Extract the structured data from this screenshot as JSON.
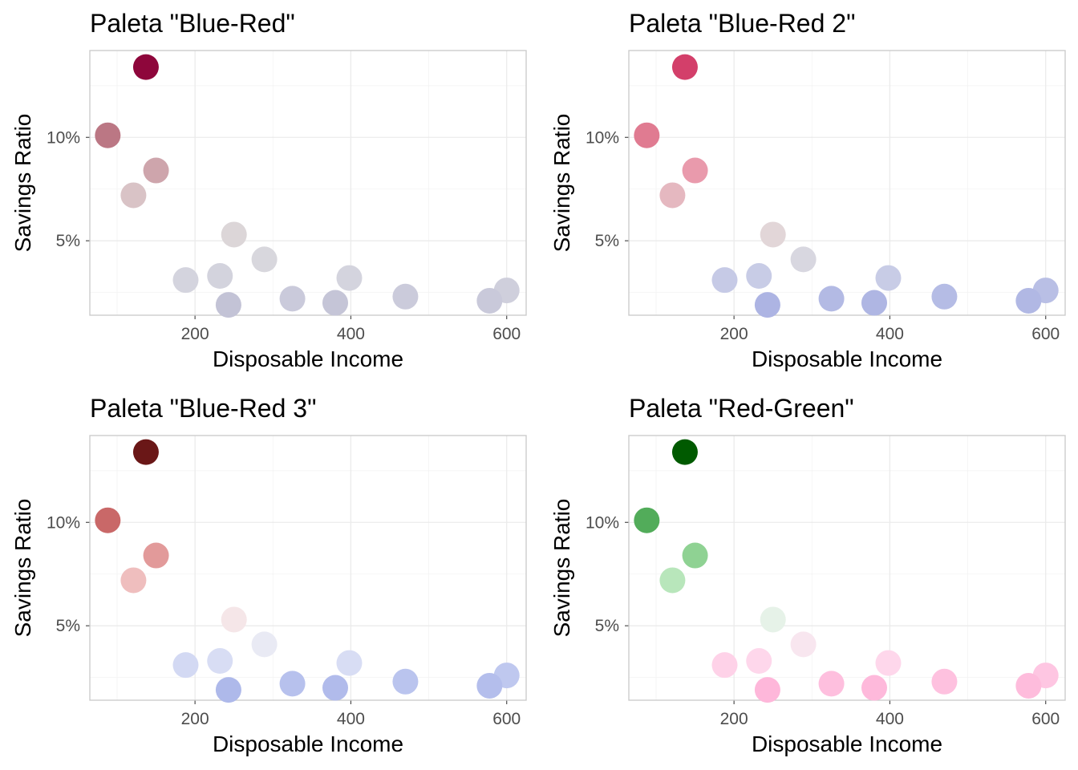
{
  "chart_data": [
    {
      "type": "scatter",
      "title": "Paleta \"Blue-Red\"",
      "xlabel": "Disposable Income",
      "ylabel": "Savings Ratio",
      "xlim": [
        65,
        625
      ],
      "ylim": [
        1.4,
        14.2
      ],
      "xticks": [
        200,
        400,
        600
      ],
      "yticks": [
        5,
        10
      ],
      "ytick_labels": [
        "5%",
        "10%"
      ],
      "grid": true,
      "points": [
        {
          "x": 137,
          "y": 13.4,
          "color": "#8e063b"
        },
        {
          "x": 88,
          "y": 10.1,
          "color": "#bb7784"
        },
        {
          "x": 150,
          "y": 8.4,
          "color": "#cea5ac"
        },
        {
          "x": 121,
          "y": 7.2,
          "color": "#d9c3c6"
        },
        {
          "x": 250,
          "y": 5.3,
          "color": "#dcd6d8"
        },
        {
          "x": 289,
          "y": 4.1,
          "color": "#d8d7dd"
        },
        {
          "x": 398,
          "y": 3.2,
          "color": "#d4d4de"
        },
        {
          "x": 188,
          "y": 3.1,
          "color": "#d4d4de"
        },
        {
          "x": 232,
          "y": 3.3,
          "color": "#d3d3dd"
        },
        {
          "x": 600,
          "y": 2.6,
          "color": "#cfcfdc"
        },
        {
          "x": 470,
          "y": 2.3,
          "color": "#cbcbdb"
        },
        {
          "x": 325,
          "y": 2.2,
          "color": "#cacadb"
        },
        {
          "x": 578,
          "y": 2.1,
          "color": "#c9c9da"
        },
        {
          "x": 380,
          "y": 2.0,
          "color": "#c5c5d7"
        },
        {
          "x": 243,
          "y": 1.9,
          "color": "#c3c3d6"
        }
      ]
    },
    {
      "type": "scatter",
      "title": "Paleta \"Blue-Red 2\"",
      "xlabel": "Disposable Income",
      "ylabel": "Savings Ratio",
      "xlim": [
        65,
        625
      ],
      "ylim": [
        1.4,
        14.2
      ],
      "xticks": [
        200,
        400,
        600
      ],
      "yticks": [
        5,
        10
      ],
      "ytick_labels": [
        "5%",
        "10%"
      ],
      "grid": true,
      "points": [
        {
          "x": 137,
          "y": 13.4,
          "color": "#d33f6a"
        },
        {
          "x": 88,
          "y": 10.1,
          "color": "#e07b91"
        },
        {
          "x": 150,
          "y": 8.4,
          "color": "#e99aac"
        },
        {
          "x": 121,
          "y": 7.2,
          "color": "#e5b8c0"
        },
        {
          "x": 250,
          "y": 5.3,
          "color": "#e2d6d8"
        },
        {
          "x": 289,
          "y": 4.1,
          "color": "#d8d7e0"
        },
        {
          "x": 398,
          "y": 3.2,
          "color": "#c8cce6"
        },
        {
          "x": 188,
          "y": 3.1,
          "color": "#c6cae6"
        },
        {
          "x": 232,
          "y": 3.3,
          "color": "#c8cce6"
        },
        {
          "x": 600,
          "y": 2.6,
          "color": "#b9bfe5"
        },
        {
          "x": 470,
          "y": 2.3,
          "color": "#b5bce5"
        },
        {
          "x": 325,
          "y": 2.2,
          "color": "#b3bae4"
        },
        {
          "x": 578,
          "y": 2.1,
          "color": "#b1b8e4"
        },
        {
          "x": 380,
          "y": 2.0,
          "color": "#afb6e3"
        },
        {
          "x": 243,
          "y": 1.9,
          "color": "#adb4e3"
        }
      ]
    },
    {
      "type": "scatter",
      "title": "Paleta \"Blue-Red 3\"",
      "xlabel": "Disposable Income",
      "ylabel": "Savings Ratio",
      "xlim": [
        65,
        625
      ],
      "ylim": [
        1.4,
        14.2
      ],
      "xticks": [
        200,
        400,
        600
      ],
      "yticks": [
        5,
        10
      ],
      "ytick_labels": [
        "5%",
        "10%"
      ],
      "grid": true,
      "points": [
        {
          "x": 137,
          "y": 13.4,
          "color": "#6a1717"
        },
        {
          "x": 88,
          "y": 10.1,
          "color": "#c96868"
        },
        {
          "x": 150,
          "y": 8.4,
          "color": "#e29a9a"
        },
        {
          "x": 121,
          "y": 7.2,
          "color": "#efbebe"
        },
        {
          "x": 250,
          "y": 5.3,
          "color": "#f5e6e8"
        },
        {
          "x": 289,
          "y": 4.1,
          "color": "#e9eaf4"
        },
        {
          "x": 398,
          "y": 3.2,
          "color": "#d8ddf4"
        },
        {
          "x": 188,
          "y": 3.1,
          "color": "#d3d9f3"
        },
        {
          "x": 232,
          "y": 3.3,
          "color": "#d8ddf4"
        },
        {
          "x": 600,
          "y": 2.6,
          "color": "#bfc8ef"
        },
        {
          "x": 470,
          "y": 2.3,
          "color": "#bac4ee"
        },
        {
          "x": 325,
          "y": 2.2,
          "color": "#b7c1ed"
        },
        {
          "x": 578,
          "y": 2.1,
          "color": "#b4beec"
        },
        {
          "x": 380,
          "y": 2.0,
          "color": "#b1bbeb"
        },
        {
          "x": 243,
          "y": 1.9,
          "color": "#aeb9ea"
        }
      ]
    },
    {
      "type": "scatter",
      "title": "Paleta \"Red-Green\"",
      "xlabel": "Disposable Income",
      "ylabel": "Savings Ratio",
      "xlim": [
        65,
        625
      ],
      "ylim": [
        1.4,
        14.2
      ],
      "xticks": [
        200,
        400,
        600
      ],
      "yticks": [
        5,
        10
      ],
      "ytick_labels": [
        "5%",
        "10%"
      ],
      "grid": true,
      "points": [
        {
          "x": 137,
          "y": 13.4,
          "color": "#005a00"
        },
        {
          "x": 88,
          "y": 10.1,
          "color": "#52ac5a"
        },
        {
          "x": 150,
          "y": 8.4,
          "color": "#8fd293"
        },
        {
          "x": 121,
          "y": 7.2,
          "color": "#b8e6bb"
        },
        {
          "x": 250,
          "y": 5.3,
          "color": "#e6f2e8"
        },
        {
          "x": 289,
          "y": 4.1,
          "color": "#f8e6ef"
        },
        {
          "x": 398,
          "y": 3.2,
          "color": "#fed7eb"
        },
        {
          "x": 188,
          "y": 3.1,
          "color": "#fed2e8"
        },
        {
          "x": 232,
          "y": 3.3,
          "color": "#fed7eb"
        },
        {
          "x": 600,
          "y": 2.6,
          "color": "#fec6e2"
        },
        {
          "x": 470,
          "y": 2.3,
          "color": "#fec1df"
        },
        {
          "x": 325,
          "y": 2.2,
          "color": "#febfde"
        },
        {
          "x": 578,
          "y": 2.1,
          "color": "#febcdc"
        },
        {
          "x": 380,
          "y": 2.0,
          "color": "#feb9db"
        },
        {
          "x": 243,
          "y": 1.9,
          "color": "#feb7da"
        }
      ]
    }
  ]
}
